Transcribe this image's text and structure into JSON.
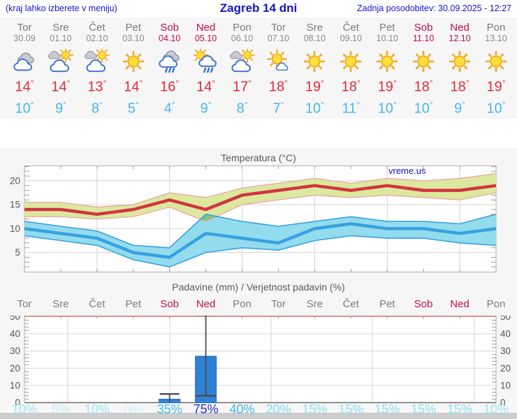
{
  "header": {
    "left_note": "(kraj lahko izberete v meniju)",
    "title": "Zagreb 14 dni",
    "updated": "Zadnja posodobitev: 30.09.2025 - 12:27"
  },
  "units": {
    "degree": "°"
  },
  "colors": {
    "header_blue": "#1414cc",
    "weekend_red": "#bf0b51",
    "day_gray": "#7b7b7b",
    "tmax_text_red": "#e12b38",
    "tmin_text_blue": "#47b7ef",
    "temp_max_line": "#d23440",
    "temp_max_band": "#dbe89e",
    "temp_max_band_edge": "#ef9e9e",
    "temp_min_line": "#38a1e0",
    "temp_min_band": "#92dcee",
    "band_overlap_green": "#7cc882",
    "precip_bar_blue": "#2e82d6",
    "precip_top_axis_pink": "#e27d7d",
    "whisker_gray": "#4d4d4d",
    "grid_gray": "#d4d4d4",
    "axis_text_gray": "#555555"
  },
  "forecast": {
    "days": [
      {
        "name": "Tor",
        "date": "30.09",
        "weekend": false,
        "icon": "cloudy",
        "tmax": "14",
        "tmin": "10"
      },
      {
        "name": "Sre",
        "date": "01.10",
        "weekend": false,
        "icon": "partly-cloudy",
        "tmax": "14",
        "tmin": "9"
      },
      {
        "name": "Čet",
        "date": "02.10",
        "weekend": false,
        "icon": "partly-cloudy",
        "tmax": "13",
        "tmin": "8"
      },
      {
        "name": "Pet",
        "date": "03.10",
        "weekend": false,
        "icon": "sunny",
        "tmax": "14",
        "tmin": "5"
      },
      {
        "name": "Sob",
        "date": "04.10",
        "weekend": true,
        "icon": "rain",
        "tmax": "16",
        "tmin": "4"
      },
      {
        "name": "Ned",
        "date": "05.10",
        "weekend": true,
        "icon": "sun-rain",
        "tmax": "14",
        "tmin": "9"
      },
      {
        "name": "Pon",
        "date": "06.10",
        "weekend": false,
        "icon": "partly-cloudy",
        "tmax": "17",
        "tmin": "8"
      },
      {
        "name": "Tor",
        "date": "07.10",
        "weekend": false,
        "icon": "mostly-sunny",
        "tmax": "18",
        "tmin": "7"
      },
      {
        "name": "Sre",
        "date": "08.10",
        "weekend": false,
        "icon": "sunny",
        "tmax": "19",
        "tmin": "10"
      },
      {
        "name": "Čet",
        "date": "09.10",
        "weekend": false,
        "icon": "sunny",
        "tmax": "18",
        "tmin": "11"
      },
      {
        "name": "Pet",
        "date": "10.10",
        "weekend": false,
        "icon": "sunny",
        "tmax": "19",
        "tmin": "10"
      },
      {
        "name": "Sob",
        "date": "11.10",
        "weekend": true,
        "icon": "sunny",
        "tmax": "18",
        "tmin": "10"
      },
      {
        "name": "Ned",
        "date": "12.10",
        "weekend": true,
        "icon": "sunny",
        "tmax": "18",
        "tmin": "9"
      },
      {
        "name": "Pon",
        "date": "13.10",
        "weekend": false,
        "icon": "sunny",
        "tmax": "19",
        "tmin": "10"
      }
    ]
  },
  "chart_data": [
    {
      "type": "line",
      "title": "Temperatura (°C)",
      "watermark": "vreme.us",
      "categories": [
        "Tor 30.09",
        "Sre 01.10",
        "Čet 02.10",
        "Pet 03.10",
        "Sob 04.10",
        "Ned 05.10",
        "Pon 06.10",
        "Tor 07.10",
        "Sre 08.10",
        "Čet 09.10",
        "Pet 10.10",
        "Sob 11.10",
        "Ned 12.10",
        "Pon 13.10"
      ],
      "ylim": [
        1,
        23.2
      ],
      "yticks": [
        5,
        10,
        15,
        20
      ],
      "grid": true,
      "series": [
        {
          "name": "max-temperature",
          "values": [
            14,
            14,
            13,
            14,
            16,
            14,
            17,
            18,
            19,
            18,
            19,
            18,
            18,
            19
          ]
        },
        {
          "name": "max-temperature-band-high",
          "values": [
            15.5,
            15.5,
            14.5,
            15,
            17.5,
            16.5,
            18.5,
            19.5,
            20.5,
            19.5,
            20.5,
            20,
            20.5,
            21.5
          ]
        },
        {
          "name": "max-temperature-band-low",
          "values": [
            12.5,
            12.5,
            12,
            12.5,
            14.5,
            11.5,
            15,
            16,
            17,
            16.5,
            17,
            16.5,
            16,
            17.5
          ]
        },
        {
          "name": "min-temperature",
          "values": [
            10,
            9,
            8,
            5,
            4,
            9,
            8,
            7,
            10,
            11,
            10,
            10,
            9,
            10
          ]
        },
        {
          "name": "min-temperature-band-high",
          "values": [
            11.5,
            10.5,
            9.5,
            6.5,
            6,
            13,
            11.5,
            10.5,
            11.5,
            12.5,
            11.5,
            11.5,
            11,
            13
          ]
        },
        {
          "name": "min-temperature-band-low",
          "values": [
            8.5,
            7.5,
            6.5,
            3.5,
            2,
            5,
            6,
            5.5,
            7.5,
            8.5,
            8,
            8,
            7,
            6.5
          ]
        }
      ]
    },
    {
      "type": "bar",
      "title": "Padavine (mm) / Verjetnost padavin (%)",
      "categories": [
        "Tor",
        "Sre",
        "Čet",
        "Pet",
        "Sob",
        "Ned",
        "Pon",
        "Tor",
        "Sre",
        "Čet",
        "Pet",
        "Sob",
        "Ned",
        "Pon"
      ],
      "weekend_indices": [
        4,
        5,
        11,
        12
      ],
      "values": [
        0,
        0,
        0,
        0,
        2,
        27,
        0,
        0,
        0,
        0,
        0,
        0,
        0,
        0
      ],
      "whiskers": [
        {
          "index": 4,
          "low": 0,
          "high": 5,
          "cap_low": false
        },
        {
          "index": 5,
          "low": 4,
          "high": 51,
          "cap_low": true
        }
      ],
      "ylim": [
        0,
        52
      ],
      "yticks": [
        0,
        10,
        20,
        30,
        40,
        50
      ],
      "grid": true,
      "probabilities": [
        {
          "label": "10%",
          "color": "#9ee6f6"
        },
        {
          "label": "5%",
          "color": "#c0eff9"
        },
        {
          "label": "10%",
          "color": "#9ee6f6"
        },
        {
          "label": "0%",
          "color": "#cdf2fa"
        },
        {
          "label": "35%",
          "color": "#44bdea"
        },
        {
          "label": "75%",
          "color": "#2433cf"
        },
        {
          "label": "40%",
          "color": "#3fb6e9"
        },
        {
          "label": "20%",
          "color": "#7ed9f1"
        },
        {
          "label": "15%",
          "color": "#8fdff3"
        },
        {
          "label": "15%",
          "color": "#8fdff3"
        },
        {
          "label": "15%",
          "color": "#8fdff3"
        },
        {
          "label": "15%",
          "color": "#8fdff3"
        },
        {
          "label": "15%",
          "color": "#8fdff3"
        },
        {
          "label": "10%",
          "color": "#9ee6f6"
        }
      ]
    }
  ]
}
